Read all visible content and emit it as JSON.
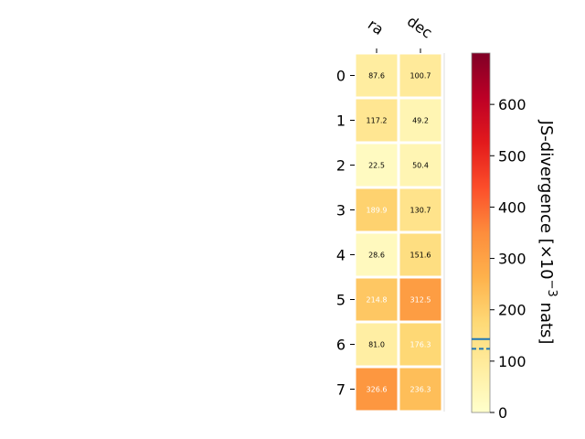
{
  "chart_data": {
    "type": "heatmap",
    "columns": [
      "ra",
      "dec"
    ],
    "rows": [
      "0",
      "1",
      "2",
      "3",
      "4",
      "5",
      "6",
      "7"
    ],
    "values": [
      [
        87.6,
        100.7
      ],
      [
        117.2,
        49.2
      ],
      [
        22.5,
        50.4
      ],
      [
        189.9,
        130.7
      ],
      [
        28.6,
        151.6
      ],
      [
        214.8,
        312.5
      ],
      [
        81.0,
        176.3
      ],
      [
        326.6,
        236.3
      ]
    ],
    "value_labels": [
      [
        "87.6",
        "100.7"
      ],
      [
        "117.2",
        "49.2"
      ],
      [
        "22.5",
        "50.4"
      ],
      [
        "189.9",
        "130.7"
      ],
      [
        "28.6",
        "151.6"
      ],
      [
        "214.8",
        "312.5"
      ],
      [
        "81.0",
        "176.3"
      ],
      [
        "326.6",
        "236.3"
      ]
    ],
    "colorbar": {
      "label_prefix": "JS-divergence [×10",
      "label_exponent": "−3",
      "label_suffix": " nats]",
      "range": [
        0,
        700
      ],
      "ticks": [
        0,
        100,
        200,
        300,
        400,
        500,
        600
      ],
      "tick_labels": [
        "0",
        "100",
        "200",
        "300",
        "400",
        "500",
        "600"
      ],
      "colormap": "YlOrRd",
      "reference_lines": [
        {
          "value": 143,
          "style": "solid",
          "color": "#1f77b4"
        },
        {
          "value": 124,
          "style": "dashed",
          "color": "#1f77b4"
        }
      ]
    }
  }
}
